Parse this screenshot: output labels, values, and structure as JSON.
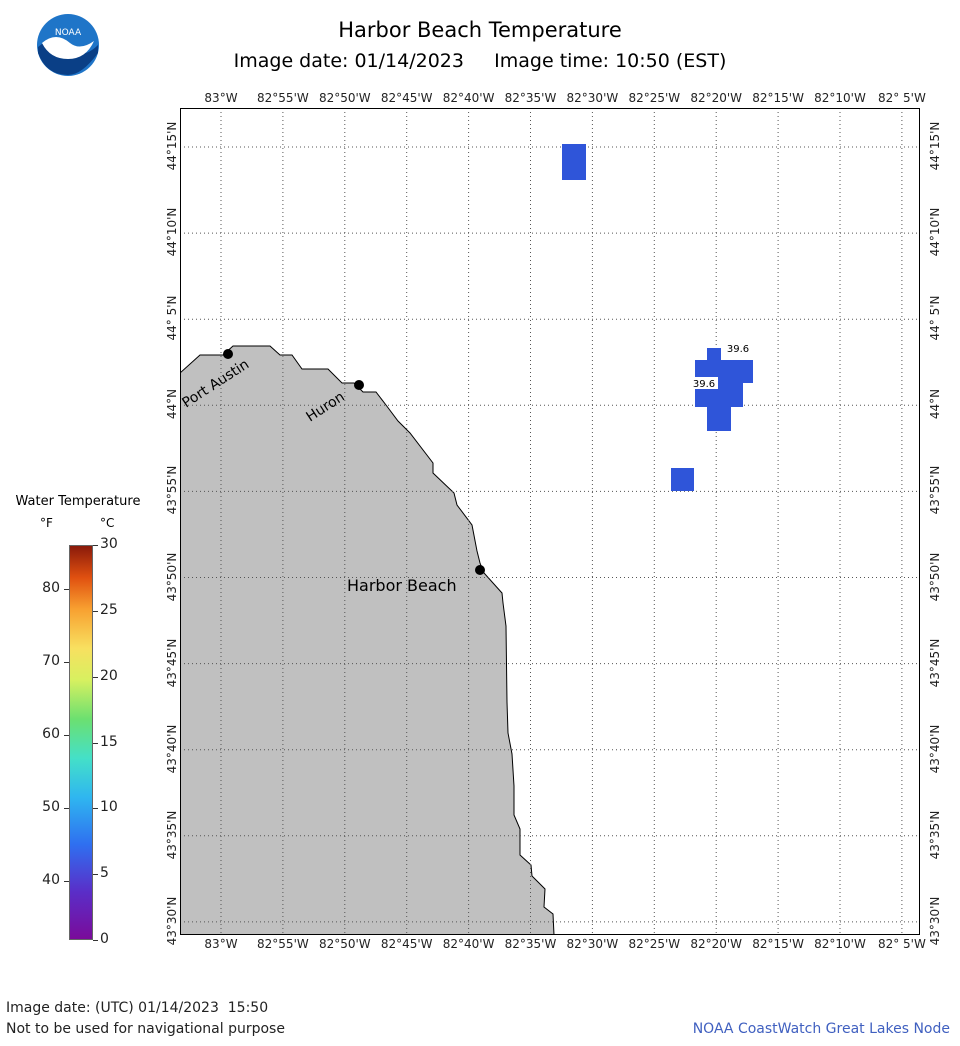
{
  "header": {
    "title": "Harbor Beach Temperature",
    "subtitle": "Image date: 01/14/2023     Image time: 10:50 (EST)",
    "logo_text": "NOAA"
  },
  "map": {
    "lon_labels": [
      "83°W",
      "82°55'W",
      "82°50'W",
      "82°45'W",
      "82°40'W",
      "82°35'W",
      "82°30'W",
      "82°25'W",
      "82°20'W",
      "82°15'W",
      "82°10'W",
      "82° 5'W"
    ],
    "lat_labels": [
      "44°15'N",
      "44°10'N",
      "44° 5'N",
      "44°N",
      "43°55'N",
      "43°50'N",
      "43°45'N",
      "43°40'N",
      "43°35'N",
      "43°30'N"
    ],
    "places": [
      {
        "name": "Port Austin"
      },
      {
        "name": "Huron"
      },
      {
        "name": "Harbor Beach"
      }
    ],
    "readings": [
      {
        "value": "39.6"
      },
      {
        "value": "39.6"
      }
    ],
    "colors": {
      "land": "#c0c0c0",
      "water": "#ffffff",
      "temp_pixel": "#2f55d9",
      "grid": "#555555"
    }
  },
  "legend": {
    "title": "Water Temperature",
    "unit_f": "°F",
    "unit_c": "°C",
    "f_ticks": [
      "80",
      "70",
      "60",
      "50",
      "40"
    ],
    "c_ticks": [
      "30",
      "25",
      "20",
      "15",
      "10",
      "5",
      "0"
    ]
  },
  "footer": {
    "date": "Image date: (UTC) 01/14/2023  15:50",
    "disclaimer": "Not to be used for navigational purpose",
    "credit": "NOAA CoastWatch Great Lakes Node"
  }
}
